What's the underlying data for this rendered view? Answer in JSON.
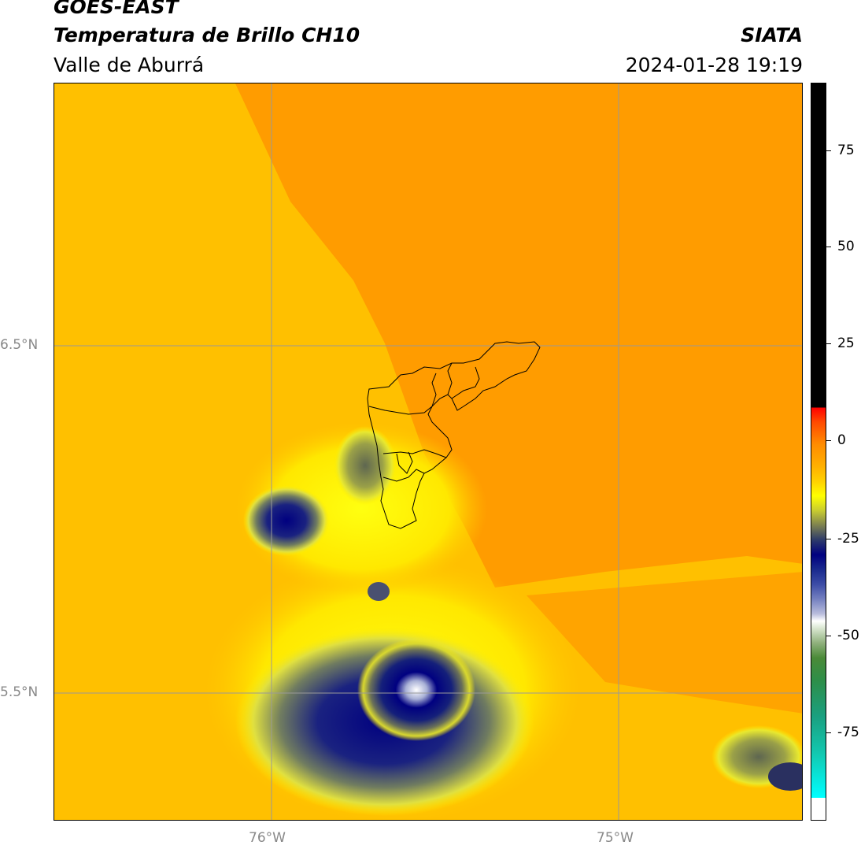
{
  "header": {
    "title_line1": "GOES-EAST",
    "title_line2": "Temperatura de Brillo CH10",
    "subtitle": "Valle de Aburrá",
    "org": "SIATA",
    "datetime": "2024-01-28 19:19"
  },
  "map": {
    "lat_labels": [
      "6.5°N",
      "5.5°N"
    ],
    "lon_labels": [
      "76°W",
      "75°W"
    ]
  },
  "colorbar": {
    "ticks": [
      "75",
      "50",
      "25",
      "0",
      "-25",
      "-50",
      "-75"
    ],
    "colors": {
      "warm": "#ff9900",
      "mid": "#ffc800",
      "cold": "#000080",
      "coldest": "#ffffff"
    }
  }
}
